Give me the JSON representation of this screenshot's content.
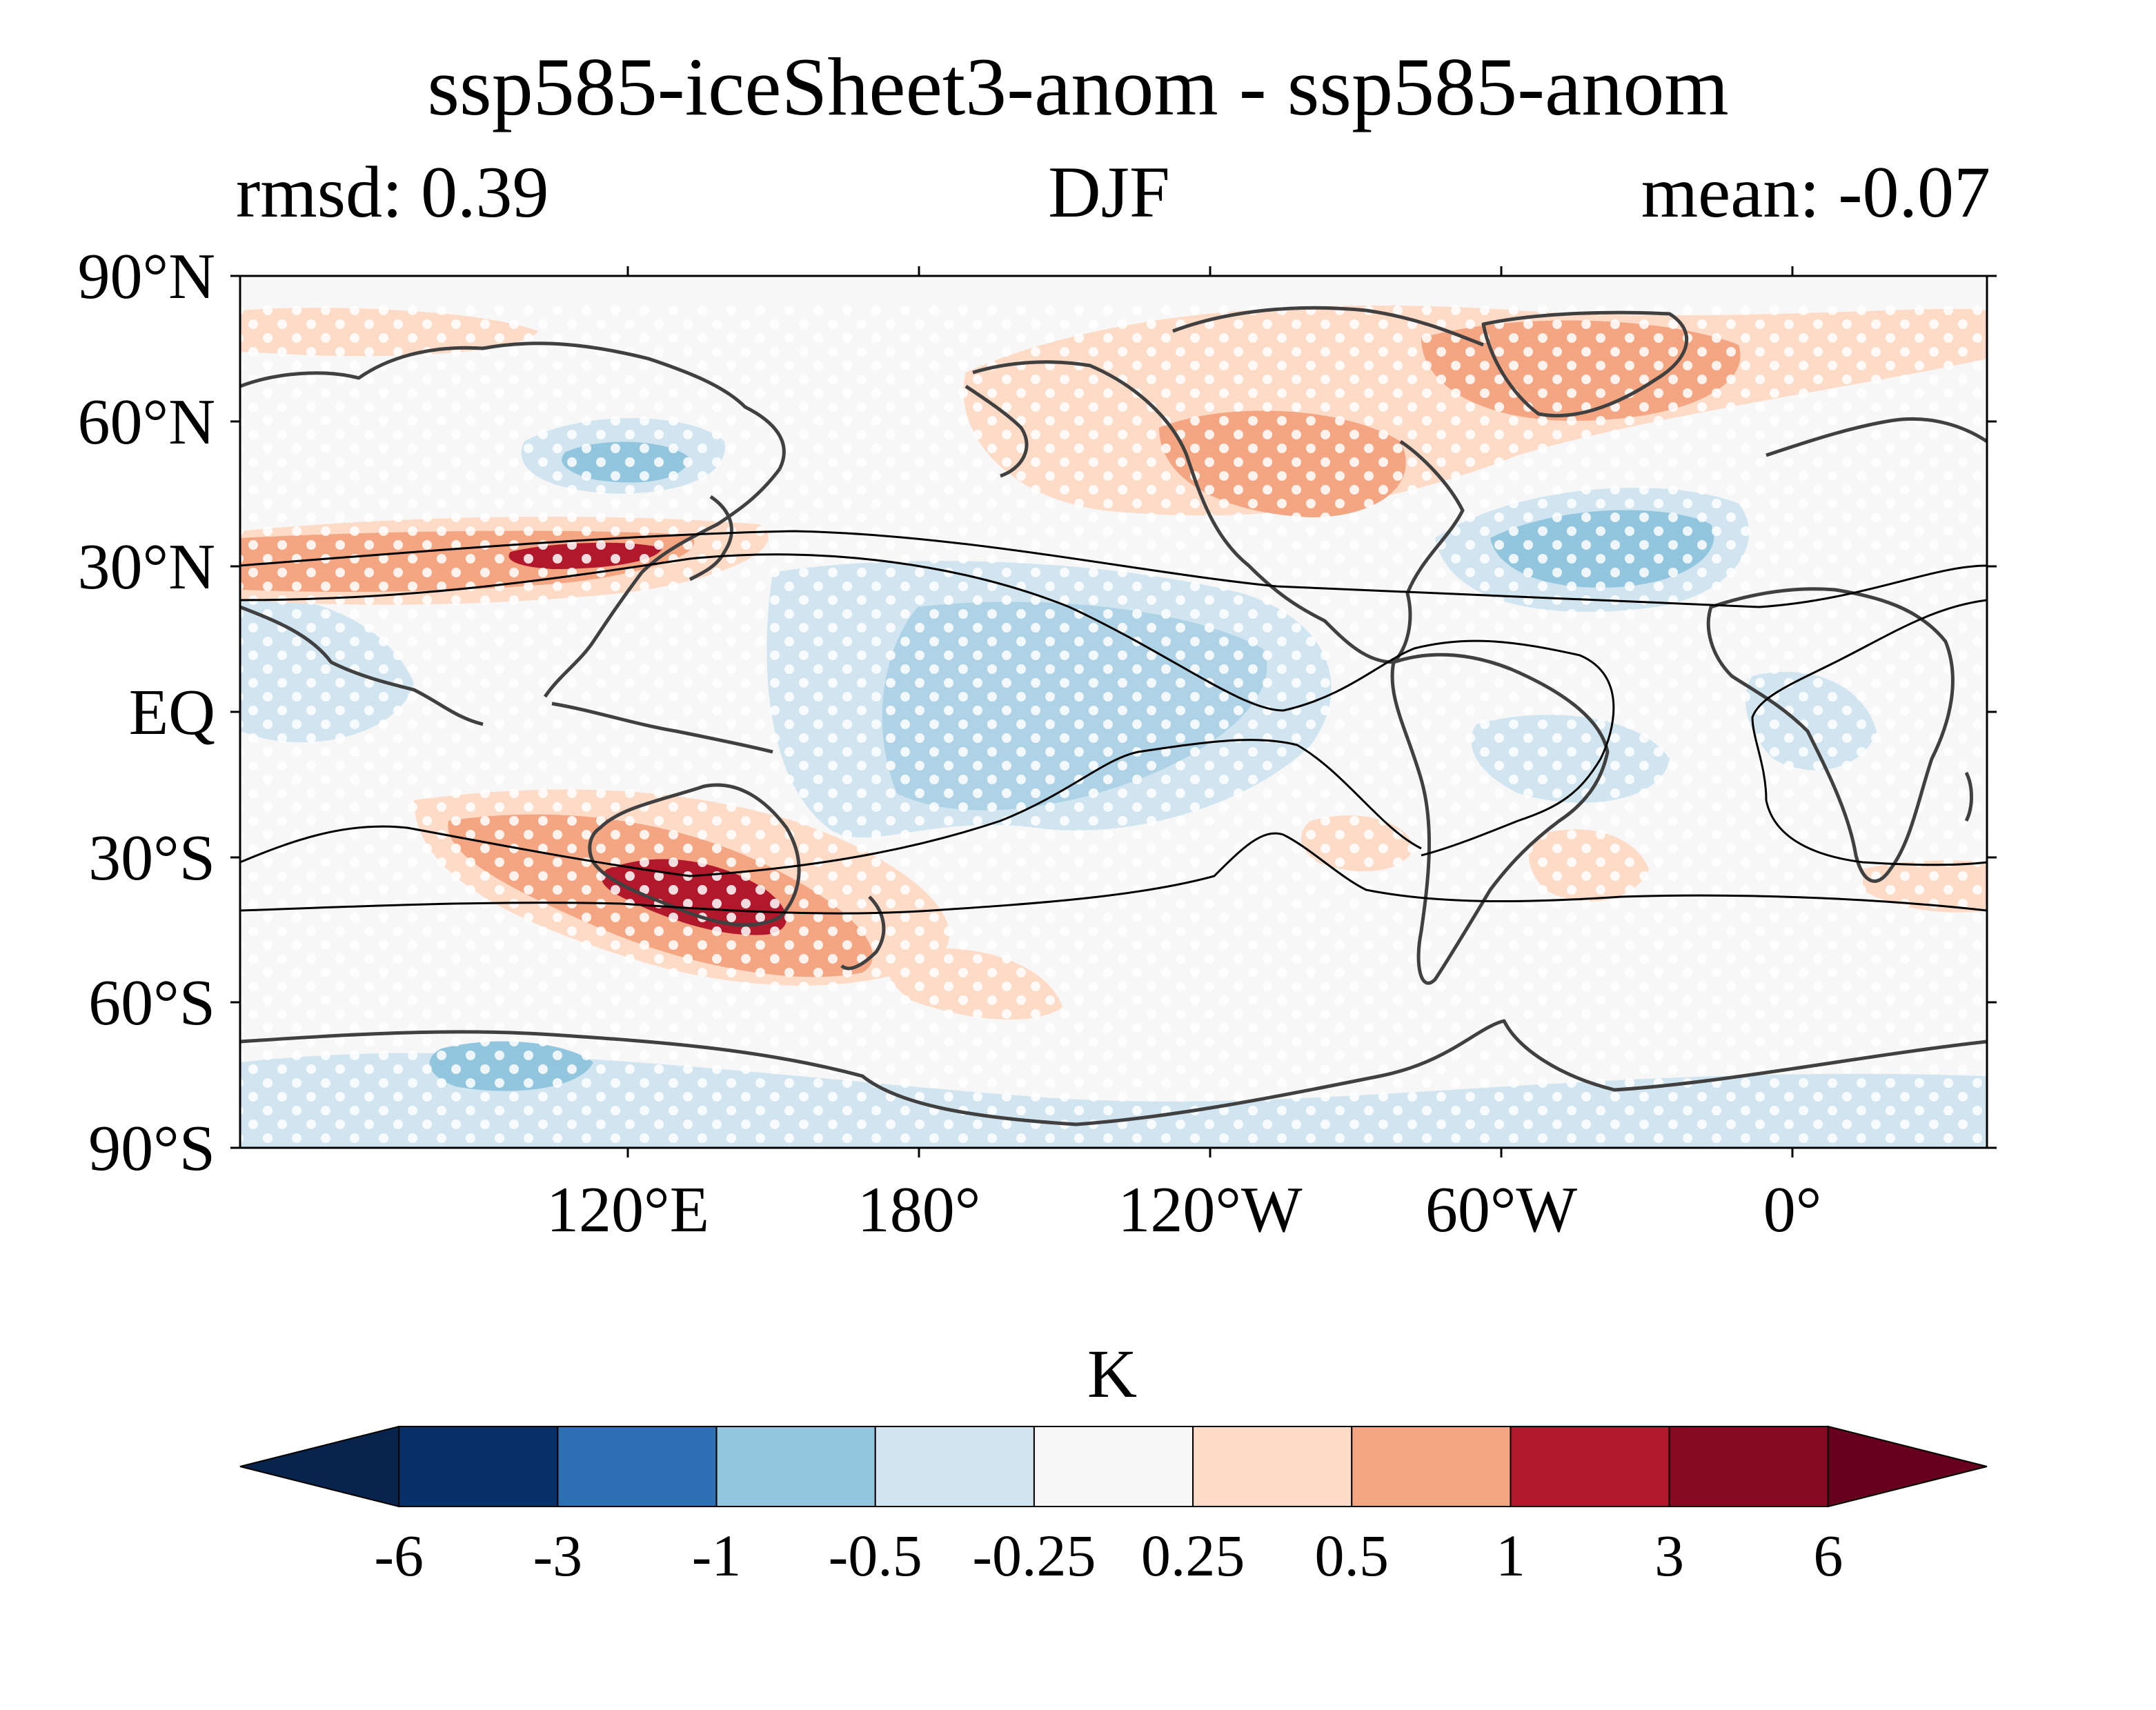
{
  "figure": {
    "title": "ssp585-iceSheet3-anom - ssp585-anom",
    "rmsd_label": "rmsd: 0.39",
    "season_label": "DJF",
    "mean_label": "mean: -0.07"
  },
  "map": {
    "projection": "equirectangular",
    "central_longitude": "60°W-centred (map spans 60°E to 60°E)",
    "lat_ticks": [
      "90°N",
      "60°N",
      "30°N",
      "EQ",
      "30°S",
      "60°S",
      "90°S"
    ],
    "lon_ticks": [
      "120°E",
      "180°",
      "120°W",
      "60°W",
      "0°"
    ],
    "stippling": "white dots mark significant regions",
    "contour_lines": "black climatological contours",
    "coastlines": "dark grey",
    "anomaly_patches": [
      {
        "region": "East Asia jet",
        "sign": "positive",
        "level": "3 to 6"
      },
      {
        "region": "Southern Australia",
        "sign": "positive",
        "level": "3 to 6"
      },
      {
        "region": "North America / Canada",
        "sign": "positive",
        "level": "0.5 to 1"
      },
      {
        "region": "Tropical central-east Pacific",
        "sign": "negative",
        "level": "-0.5 to -0.25"
      },
      {
        "region": "North Atlantic",
        "sign": "negative",
        "level": "-1 to -0.5"
      },
      {
        "region": "Siberia / Okhotsk",
        "sign": "negative",
        "level": "-1 to -0.5"
      },
      {
        "region": "Antarctica",
        "sign": "negative",
        "level": "-1 to -0.25"
      }
    ]
  },
  "colorbar": {
    "unit": "K",
    "tick_labels": [
      "-6",
      "-3",
      "-1",
      "-0.5",
      "-0.25",
      "0.25",
      "0.5",
      "1",
      "3",
      "6"
    ],
    "extend": "both",
    "colors": [
      "#08234c",
      "#073068",
      "#2c6fb3",
      "#92c5de",
      "#d1e5f0",
      "#f7f7f7",
      "#fddbc7",
      "#f4a582",
      "#b2182b",
      "#870a25",
      "#67001f"
    ]
  }
}
